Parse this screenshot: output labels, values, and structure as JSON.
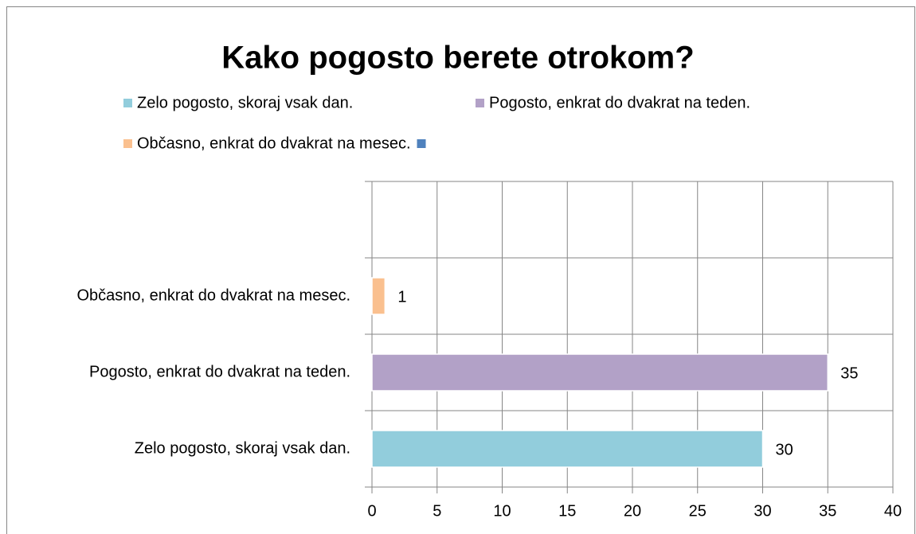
{
  "chart_data": {
    "type": "bar",
    "orientation": "horizontal",
    "title": "Kako pogosto berete otrokom?",
    "categories": [
      "Zelo pogosto, skoraj vsak dan.",
      "Pogosto, enkrat do dvakrat na teden.",
      "Občasno, enkrat do dvakrat na mesec.",
      null
    ],
    "values": [
      30,
      35,
      1,
      null
    ],
    "colors": [
      "#92cddc",
      "#b2a1c7",
      "#fac08f",
      "#4f81bd"
    ],
    "xlim": [
      0,
      40
    ],
    "xticks": [
      0,
      5,
      10,
      15,
      20,
      25,
      30,
      35,
      40
    ],
    "grid": true,
    "legend": "top"
  }
}
